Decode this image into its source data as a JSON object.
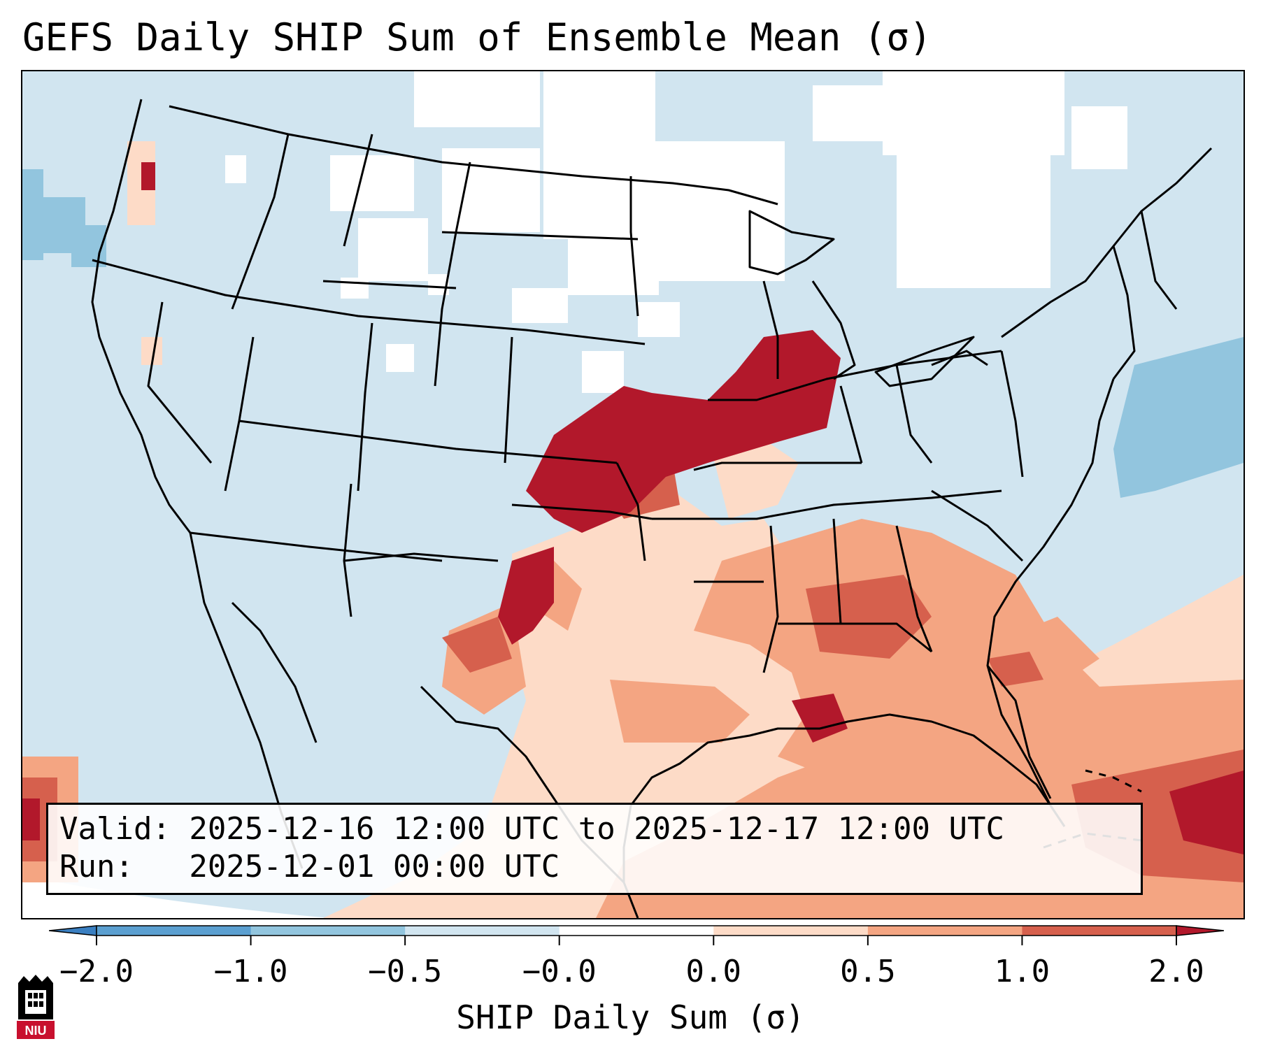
{
  "title": "GEFS Daily SHIP Sum of Ensemble Mean (σ)",
  "info": {
    "valid_line": "Valid: 2025-12-16 12:00 UTC to 2025-12-17 12:00 UTC",
    "run_line": "Run:   2025-12-01 00:00 UTC"
  },
  "colorbar": {
    "label": "SHIP Daily Sum (σ)",
    "ticks": [
      "−2.0",
      "−1.0",
      "−0.5",
      "−0.0",
      "0.0",
      "0.5",
      "1.0",
      "2.0"
    ],
    "colors": [
      "#3a7fc1",
      "#5b9fd0",
      "#92c5de",
      "#d1e5f0",
      "#ffffff",
      "#fddbc7",
      "#f4a582",
      "#d6604d",
      "#b2182b"
    ],
    "extend": "both"
  },
  "map": {
    "land_color": "#d1e5f0",
    "ocean_color": "#d1e5f0",
    "background": "#ffffff",
    "boundary_color": "#000000"
  },
  "logo": {
    "text": "NIU",
    "colors": [
      "#c8102e",
      "#000000"
    ]
  }
}
